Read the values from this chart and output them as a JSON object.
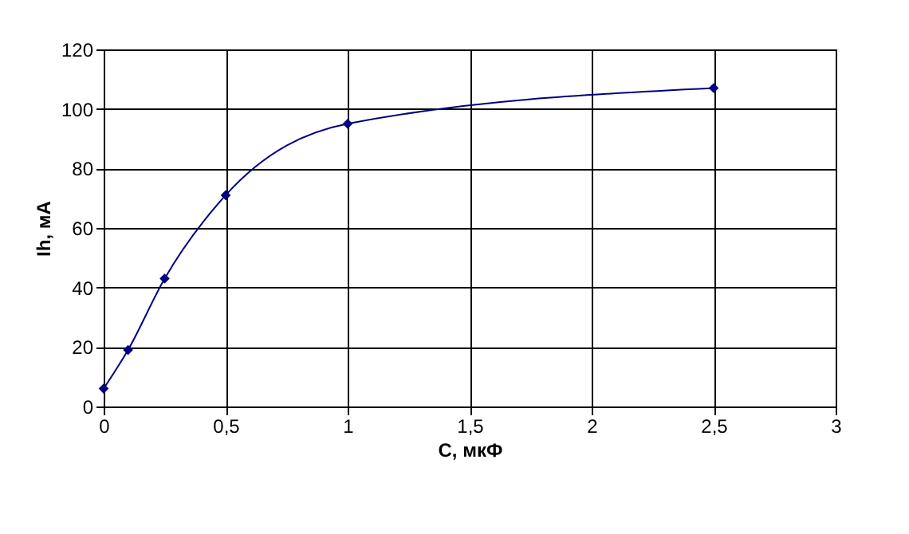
{
  "chart_data": {
    "type": "line",
    "xlabel": "C, мкФ",
    "ylabel": "Ih, мА",
    "x": [
      0,
      0.1,
      0.25,
      0.5,
      1,
      2.5
    ],
    "series": [
      {
        "color": "#000080",
        "values": [
          6,
          19,
          43,
          71,
          95,
          107
        ]
      }
    ],
    "xlim": [
      0,
      3
    ],
    "xticks": [
      0,
      {
        "value": 0.5,
        "label": "0,5"
      },
      1,
      {
        "value": 1.5,
        "label": "1,5"
      },
      2,
      {
        "value": 2.5,
        "label": "2,5"
      },
      3
    ],
    "ylim": [
      0,
      120
    ],
    "yticks": [
      0,
      20,
      40,
      60,
      80,
      100,
      120
    ],
    "grid": true,
    "marker": "diamond",
    "line_style": "solid"
  }
}
